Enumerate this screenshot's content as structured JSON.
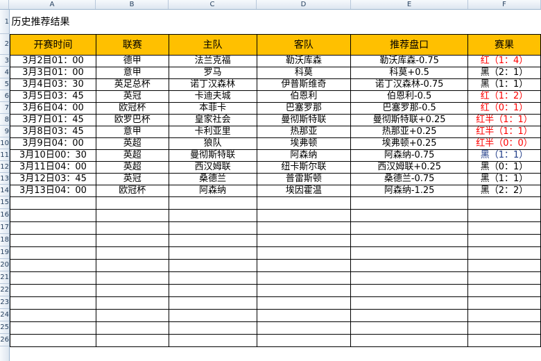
{
  "columns": [
    "A",
    "B",
    "C",
    "D",
    "E",
    "F"
  ],
  "title": "历史推荐结果",
  "headers": [
    "开赛时间",
    "联赛",
    "主队",
    "客队",
    "推荐盘口",
    "赛果"
  ],
  "rows": [
    [
      "3月2目01：00",
      "德甲",
      "法兰克福",
      "勒沃库森",
      "勒沃库森-0.75",
      "红（1：4）",
      "red"
    ],
    [
      "3月3日01：00",
      "意甲",
      "罗马",
      "科莫",
      "科莫+0.5",
      "黑（2：1）",
      ""
    ],
    [
      "3月4日03：30",
      "英足总杯",
      "诺丁汉森林",
      "伊普斯维奇",
      "诺丁汉森林-0.75",
      "黑（1：1）",
      ""
    ],
    [
      "3月5日03：45",
      "英冠",
      "卡迪夫城",
      "伯恩利",
      "伯恩利-0.5",
      "红（1：2）",
      "red"
    ],
    [
      "3月6日04：00",
      "欧冠杯",
      "本菲卡",
      "巴塞罗那",
      "巴塞罗那-0.5",
      "红（0：1）",
      "red"
    ],
    [
      "3月7日01：45",
      "欧罗巴杯",
      "皇家社会",
      "曼彻斯特联",
      "曼彻斯特联+0.25",
      "红半（1：1）",
      "red"
    ],
    [
      "3月8日03：45",
      "意甲",
      "卡利亚里",
      "热那亚",
      "热那亚+0.25",
      "红半（1：1）",
      "red"
    ],
    [
      "3月9日04：00",
      "英超",
      "狼队",
      "埃弗顿",
      "埃弗顿+0.25",
      "红半（0：0）",
      "red"
    ],
    [
      "3月10日00：30",
      "英超",
      "曼彻斯特联",
      "阿森纳",
      "阿森纳-0.75",
      "黑（1：1）",
      "blue"
    ],
    [
      "3月11日04：00",
      "英超",
      "西汉姆联",
      "纽卡斯尔联",
      "西汉姆联+0.25",
      "黑（0：1）",
      ""
    ],
    [
      "3月12日03：45",
      "英冠",
      "桑德兰",
      "普雷斯顿",
      "桑德兰-0.75",
      "黑（1：1）",
      ""
    ],
    [
      "3月13日04：00",
      "欧冠杯",
      "阿森纳",
      "埃因霍温",
      "阿森纳-1.25",
      "黑（2：2）",
      ""
    ]
  ],
  "colors": {
    "header_fill": "#ffc000",
    "win": "#ff0000",
    "note": "#1f3c88"
  }
}
